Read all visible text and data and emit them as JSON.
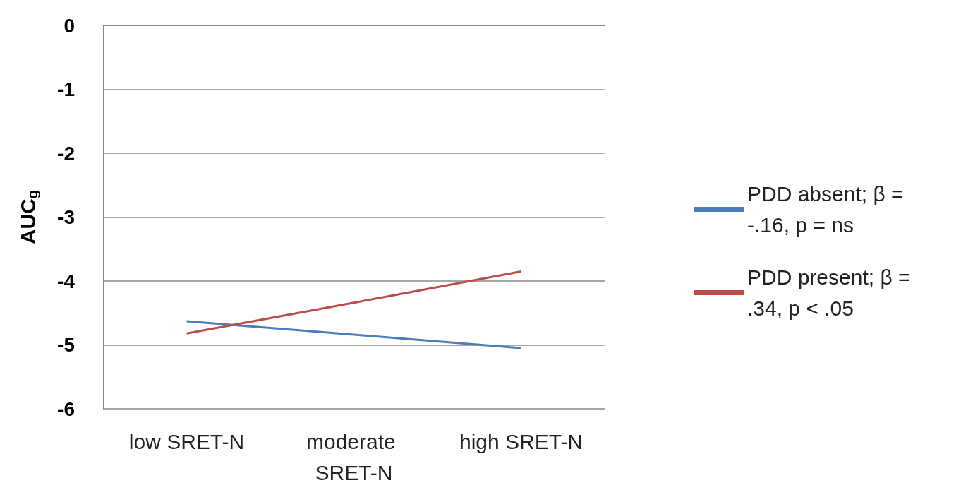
{
  "chart_data": {
    "type": "line",
    "ylabel": "AUC$_{g}$",
    "categories": [
      "low SRET-N",
      "moderate SRET-N",
      "high SRET-N"
    ],
    "series": [
      {
        "name": "PDD absent; β = -.16, p = ns",
        "color": "#4a7ebb",
        "values": [
          -4.63,
          -4.84,
          -5.05
        ]
      },
      {
        "name": "PDD present; β = .34, p < .05",
        "color": "#be4b48",
        "values": [
          -4.82,
          -4.34,
          -3.85
        ]
      }
    ],
    "ylim": [
      -6,
      0
    ],
    "yticks": [
      -6,
      -5,
      -4,
      -3,
      -2,
      -1,
      0
    ],
    "grid": "y",
    "legend": "right",
    "marker": "none",
    "line_style": "solid"
  }
}
